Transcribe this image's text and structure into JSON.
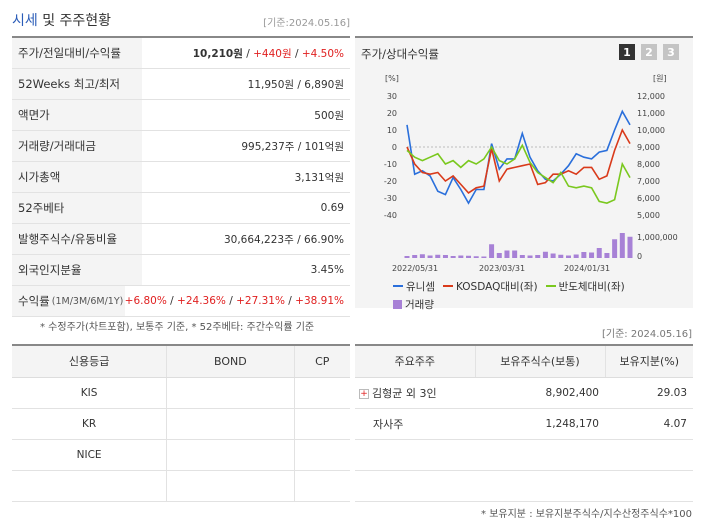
{
  "header": {
    "title_hl": "시세",
    "title_rest": " 및 주주현황",
    "date": "[기준:2024.05.16]"
  },
  "quote_table": [
    {
      "label": "주가/전일대비/수익률",
      "value_parts": [
        {
          "text": "10,210원",
          "cls": "b"
        },
        {
          "text": " / ",
          "cls": ""
        },
        {
          "text": "+440원",
          "cls": "red"
        },
        {
          "text": " / ",
          "cls": ""
        },
        {
          "text": "+4.50%",
          "cls": "red"
        }
      ]
    },
    {
      "label": "52Weeks 최고/최저",
      "value_parts": [
        {
          "text": "11,950원 / 6,890원",
          "cls": ""
        }
      ]
    },
    {
      "label": "액면가",
      "value_parts": [
        {
          "text": "500원",
          "cls": ""
        }
      ]
    },
    {
      "label": "거래량/거래대금",
      "value_parts": [
        {
          "text": "995,237주 / 101억원",
          "cls": ""
        }
      ]
    },
    {
      "label": "시가총액",
      "value_parts": [
        {
          "text": "3,131억원",
          "cls": ""
        }
      ]
    },
    {
      "label": "52주베타",
      "value_parts": [
        {
          "text": "0.69",
          "cls": ""
        }
      ]
    },
    {
      "label": "발행주식수/유동비율",
      "value_parts": [
        {
          "text": "30,664,223주 / 66.90%",
          "cls": ""
        }
      ]
    },
    {
      "label": "외국인지분율",
      "value_parts": [
        {
          "text": "3.45%",
          "cls": ""
        }
      ]
    },
    {
      "label": "수익률",
      "label_small": "(1M/3M/6M/1Y)",
      "value_parts": [
        {
          "text": "+6.80%",
          "cls": "red"
        },
        {
          "text": " / ",
          "cls": ""
        },
        {
          "text": "+24.36%",
          "cls": "red"
        },
        {
          "text": " / ",
          "cls": ""
        },
        {
          "text": "+27.31%",
          "cls": "red"
        },
        {
          "text": " / ",
          "cls": ""
        },
        {
          "text": "+38.91%",
          "cls": "red"
        }
      ]
    }
  ],
  "left_note": "* 수정주가(차트포함), 보통주 기준, * 52주베타: 주간수익률 기준",
  "chart_panel": {
    "title": "주가/상대수익률",
    "tabs": [
      "1",
      "2",
      "3"
    ],
    "active_tab": 0
  },
  "chart_data": {
    "type": "line",
    "left_axis_label": "[%]",
    "right_axis_label": "[원]",
    "left_ticks": [
      30,
      20,
      10,
      0,
      -10,
      -20,
      -30,
      -40
    ],
    "right_ticks": [
      "12,000",
      "11,000",
      "10,000",
      "9,000",
      "8,000",
      "7,000",
      "6,000",
      "5,000"
    ],
    "volume_ticks": [
      "1,000,000",
      "0"
    ],
    "x_labels": [
      "2022/05/31",
      "2023/03/31",
      "2024/01/31"
    ],
    "ylim_left": [
      -40,
      30
    ],
    "ylim_right": [
      5000,
      12000
    ],
    "series": [
      {
        "name": "유니셈",
        "color": "#2a6fdb",
        "values": [
          13,
          -16,
          -14,
          -17,
          -26,
          -28,
          -18,
          -25,
          -33,
          -25,
          -25,
          2,
          -13,
          -7,
          -7,
          8,
          -6,
          -14,
          -19,
          -20,
          -16,
          -11,
          -4,
          -6,
          -7,
          -3,
          -2,
          10,
          21,
          13
        ]
      },
      {
        "name": "KOSDAQ대비(좌)",
        "color": "#d93a1a",
        "values": [
          0,
          -10,
          -15,
          -16,
          -15,
          -20,
          -17,
          -22,
          -27,
          -24,
          -23,
          -1,
          -20,
          -13,
          -12,
          -11,
          -10,
          -22,
          -21,
          -16,
          -16,
          -14,
          -16,
          -12,
          -12,
          -19,
          -17,
          -2,
          10,
          2
        ]
      },
      {
        "name": "반도체대비(좌)",
        "color": "#7ac81e",
        "values": [
          -2,
          -6,
          -8,
          -6,
          -4,
          -10,
          -8,
          -12,
          -8,
          -10,
          -7,
          0,
          -8,
          -10,
          -7,
          1,
          -9,
          -15,
          -18,
          -21,
          -15,
          -23,
          -24,
          -23,
          -24,
          -32,
          -33,
          -31,
          -10,
          -18
        ]
      }
    ],
    "volume": {
      "name": "거래량",
      "color": "#a781d6",
      "values": [
        0.08,
        0.12,
        0.15,
        0.1,
        0.13,
        0.12,
        0.08,
        0.1,
        0.09,
        0.07,
        0.06,
        0.55,
        0.2,
        0.3,
        0.3,
        0.12,
        0.1,
        0.12,
        0.25,
        0.18,
        0.13,
        0.1,
        0.14,
        0.24,
        0.22,
        0.4,
        0.2,
        0.75,
        1.05,
        0.85
      ]
    }
  },
  "right_date": "[기준: 2024.05.16]",
  "credit_table": {
    "headers": [
      "신용등급",
      "BOND",
      "CP"
    ],
    "rows": [
      [
        "KIS",
        "",
        ""
      ],
      [
        "KR",
        "",
        ""
      ],
      [
        "NICE",
        "",
        ""
      ],
      [
        "",
        "",
        ""
      ]
    ]
  },
  "holder_table": {
    "headers": [
      "주요주주",
      "보유주식수(보통)",
      "보유지분(%)"
    ],
    "rows": [
      {
        "name": "김형균 외 3인",
        "shares": "8,902,400",
        "pct": "29.03",
        "expandable": true
      },
      {
        "name": "자사주",
        "shares": "1,248,170",
        "pct": "4.07",
        "expandable": false
      },
      {
        "name": "",
        "shares": "",
        "pct": "",
        "expandable": false
      },
      {
        "name": "",
        "shares": "",
        "pct": "",
        "expandable": false
      }
    ]
  },
  "bottom_note": "* 보유지분 : 보유지분주식수/지수산정주식수*100"
}
